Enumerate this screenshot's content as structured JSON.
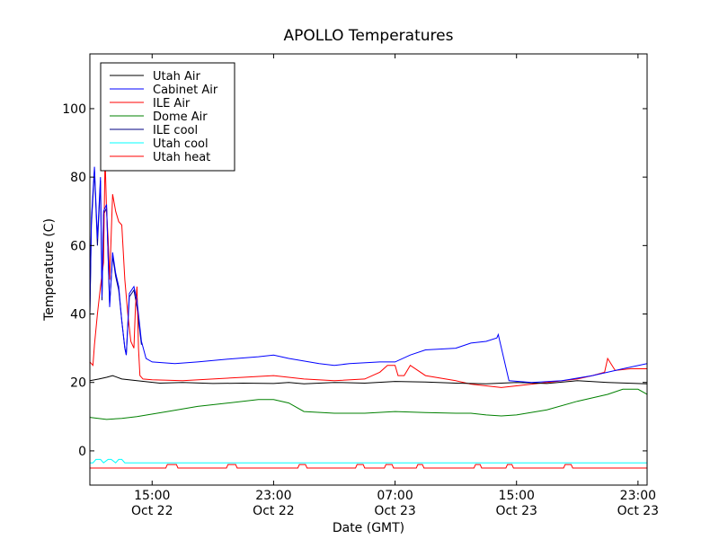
{
  "chart_data": {
    "type": "line",
    "title": "APOLLO Temperatures",
    "xlabel": "Date (GMT)",
    "ylabel": "Temperature (C)",
    "xlim": [
      10.9,
      47.6
    ],
    "ylim": [
      -10,
      116
    ],
    "grid": false,
    "legend_position": "top-left",
    "yticks": [
      {
        "value": 0,
        "label": "0"
      },
      {
        "value": 20,
        "label": "20"
      },
      {
        "value": 40,
        "label": "40"
      },
      {
        "value": 60,
        "label": "60"
      },
      {
        "value": 80,
        "label": "80"
      },
      {
        "value": 100,
        "label": "100"
      }
    ],
    "xticks": [
      {
        "value": 15,
        "time": "15:00",
        "date": "Oct 22"
      },
      {
        "value": 23,
        "time": "23:00",
        "date": "Oct 22"
      },
      {
        "value": 31,
        "time": "07:00",
        "date": "Oct 23"
      },
      {
        "value": 39,
        "time": "15:00",
        "date": "Oct 23"
      },
      {
        "value": 47,
        "time": "23:00",
        "date": "Oct 23"
      }
    ],
    "series": [
      {
        "name": "Utah Air",
        "color": "#000000",
        "x": [
          10.9,
          11.5,
          12.0,
          12.4,
          13.0,
          14.0,
          15.5,
          17.0,
          19.0,
          21.0,
          23.0,
          24.0,
          25.0,
          27.0,
          29.0,
          31.0,
          33.0,
          35.0,
          37.0,
          39.0,
          41.0,
          43.0,
          45.0,
          47.6
        ],
        "y": [
          20.5,
          21.0,
          21.5,
          22.0,
          21.0,
          20.5,
          19.8,
          20.0,
          19.7,
          19.8,
          19.7,
          20.0,
          19.6,
          20.0,
          19.8,
          20.3,
          20.1,
          19.8,
          19.6,
          20.0,
          19.7,
          20.5,
          20.0,
          19.6
        ]
      },
      {
        "name": "Cabinet Air",
        "color": "#0000ff",
        "x": [
          10.9,
          11.0,
          11.2,
          11.4,
          11.6,
          11.7,
          11.8,
          12.0,
          12.2,
          12.4,
          12.6,
          12.8,
          13.0,
          13.2,
          13.3,
          13.5,
          13.8,
          14.0,
          14.3,
          14.6,
          15.0,
          16.5,
          18.0,
          20.0,
          22.0,
          23.0,
          24.0,
          26.0,
          27.0,
          28.0,
          30.0,
          31.0,
          32.0,
          33.0,
          35.0,
          36.0,
          37.0,
          37.7,
          37.8,
          38.5,
          40.0,
          42.0,
          44.0,
          46.0,
          47.6
        ],
        "y": [
          40.0,
          68.0,
          83.0,
          62.0,
          80.0,
          45.0,
          70.0,
          72.0,
          42.0,
          58.0,
          52.0,
          48.0,
          38.0,
          30.0,
          28.0,
          46.0,
          48.0,
          44.0,
          32.0,
          27.0,
          26.0,
          25.5,
          26.0,
          26.8,
          27.5,
          28.0,
          27.0,
          25.5,
          25.0,
          25.5,
          26.0,
          26.0,
          28.0,
          29.5,
          30.0,
          31.5,
          32.0,
          33.0,
          34.0,
          20.5,
          20.0,
          20.5,
          22.0,
          24.0,
          25.5
        ]
      },
      {
        "name": "ILE Air",
        "color": "#ff0000",
        "x": [
          10.9,
          11.1,
          11.2,
          11.4,
          11.6,
          11.8,
          11.9,
          12.0,
          12.1,
          12.2,
          12.4,
          12.6,
          12.8,
          13.0,
          13.2,
          13.4,
          13.6,
          13.8,
          13.9,
          14.0,
          14.1,
          14.2,
          14.4,
          15.0,
          17.0,
          19.0,
          21.0,
          23.0,
          25.0,
          27.0,
          29.0,
          30.0,
          30.5,
          31.0,
          31.2,
          31.6,
          32.0,
          33.0,
          35.0,
          36.0,
          37.0,
          38.0,
          39.0,
          41.0,
          43.0,
          44.0,
          44.8,
          45.0,
          45.5,
          46.5,
          47.6
        ],
        "y": [
          26.0,
          25.0,
          31.0,
          40.0,
          48.0,
          55.0,
          86.0,
          70.0,
          62.0,
          50.0,
          75.0,
          70.0,
          67.0,
          66.0,
          50.0,
          40.0,
          32.0,
          30.0,
          42.0,
          48.0,
          30.0,
          22.0,
          21.0,
          20.8,
          20.5,
          21.0,
          21.5,
          22.0,
          21.0,
          20.5,
          21.0,
          23.0,
          25.0,
          25.0,
          22.0,
          22.0,
          25.0,
          22.0,
          20.5,
          19.5,
          19.0,
          18.5,
          19.0,
          20.0,
          21.0,
          22.0,
          23.0,
          27.0,
          23.5,
          24.0,
          24.0
        ]
      },
      {
        "name": "Dome Air",
        "color": "#008000",
        "x": [
          10.9,
          12.0,
          13.0,
          14.0,
          16.0,
          18.0,
          20.0,
          22.0,
          23.0,
          24.0,
          25.0,
          27.0,
          29.0,
          31.0,
          33.0,
          35.0,
          36.0,
          37.0,
          38.0,
          39.0,
          41.0,
          43.0,
          45.0,
          46.0,
          47.0,
          47.6
        ],
        "y": [
          9.8,
          9.2,
          9.5,
          10.0,
          11.5,
          13.0,
          14.0,
          15.0,
          15.0,
          14.0,
          11.5,
          11.0,
          11.0,
          11.5,
          11.2,
          11.0,
          11.0,
          10.5,
          10.2,
          10.5,
          12.0,
          14.5,
          16.5,
          18.0,
          18.0,
          16.5
        ]
      },
      {
        "name": "ILE cool",
        "color": "#000080",
        "x": [
          10.9,
          11.0,
          11.2,
          11.4,
          11.6,
          11.7,
          11.8,
          12.0,
          12.2,
          12.4,
          12.6,
          12.8,
          13.0,
          13.2,
          13.3,
          13.5,
          13.8,
          14.0,
          14.3,
          47.6
        ],
        "y": [
          40.0,
          66.0,
          82.0,
          60.0,
          79.0,
          44.0,
          69.0,
          71.0,
          43.0,
          57.0,
          51.0,
          47.0,
          38.0,
          30.0,
          28.0,
          45.0,
          47.0,
          42.0,
          31.0,
          -1.0
        ],
        "gap_after_index": 18
      },
      {
        "name": "Utah cool",
        "color": "#00ffff",
        "x": [
          10.9,
          11.1,
          11.3,
          11.6,
          11.8,
          12.1,
          12.3,
          12.6,
          12.8,
          13.0,
          13.2,
          47.6
        ],
        "y": [
          -3.5,
          -3.5,
          -2.5,
          -2.5,
          -3.5,
          -2.5,
          -2.5,
          -3.5,
          -2.5,
          -2.5,
          -3.5,
          -3.5
        ]
      },
      {
        "name": "Utah heat",
        "color": "#ff0000",
        "x": [
          10.9,
          15.9,
          16.0,
          16.6,
          16.7,
          19.9,
          20.0,
          20.5,
          20.6,
          24.6,
          24.7,
          25.1,
          25.2,
          28.4,
          28.5,
          28.9,
          29.0,
          30.3,
          30.4,
          30.8,
          30.9,
          32.4,
          32.5,
          32.8,
          32.9,
          36.2,
          36.3,
          36.6,
          36.7,
          38.3,
          38.4,
          38.7,
          38.8,
          42.1,
          42.2,
          42.6,
          42.7,
          47.6
        ],
        "y": [
          -5,
          -5,
          -4,
          -4,
          -5,
          -5,
          -4,
          -4,
          -5,
          -5,
          -4,
          -4,
          -5,
          -5,
          -4,
          -4,
          -5,
          -5,
          -4,
          -4,
          -5,
          -5,
          -4,
          -4,
          -5,
          -5,
          -4,
          -4,
          -5,
          -5,
          -4,
          -4,
          -5,
          -5,
          -4,
          -4,
          -5,
          -5
        ]
      }
    ]
  }
}
